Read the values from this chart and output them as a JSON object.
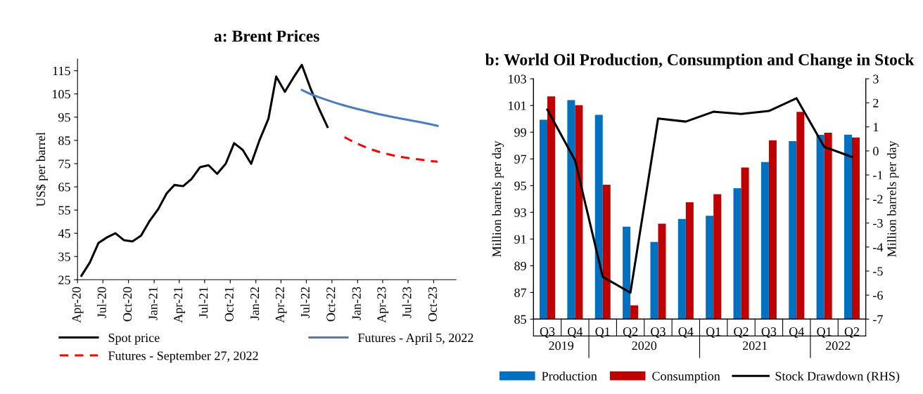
{
  "chart_data": [
    {
      "type": "line",
      "title": "a: Brent Prices",
      "ylabel": "US$ per barrel",
      "grid": false,
      "legend": "bottom",
      "marker": "none",
      "xlim": [
        "2020-04",
        "2023-12-20"
      ],
      "ylim": [
        25,
        120
      ],
      "yticks": [
        25,
        35,
        45,
        55,
        65,
        75,
        85,
        95,
        105,
        115
      ],
      "xticks": [
        {
          "value": "2020-04",
          "label": "Apr-20"
        },
        {
          "value": "2020-07",
          "label": "Jul-20"
        },
        {
          "value": "2020-10",
          "label": "Oct-20"
        },
        {
          "value": "2021-01",
          "label": "Jan-21"
        },
        {
          "value": "2021-04",
          "label": "Apr-21"
        },
        {
          "value": "2021-07",
          "label": "Jul-21"
        },
        {
          "value": "2021-10",
          "label": "Oct-21"
        },
        {
          "value": "2022-01",
          "label": "Jan-22"
        },
        {
          "value": "2022-04",
          "label": "Apr-22"
        },
        {
          "value": "2022-07",
          "label": "Jul-22"
        },
        {
          "value": "2022-10",
          "label": "Oct-22"
        },
        {
          "value": "2023-01",
          "label": "Jan-23"
        },
        {
          "value": "2023-04",
          "label": "Apr-23"
        },
        {
          "value": "2023-07",
          "label": "Jul-23"
        },
        {
          "value": "2023-10",
          "label": "Oct-23"
        }
      ],
      "series": [
        {
          "name": "Spot price",
          "color": "#000000",
          "line_style": "solid",
          "x": [
            "2020-04-15",
            "2020-05-15",
            "2020-06-15",
            "2020-07-15",
            "2020-08-15",
            "2020-09-15",
            "2020-10-15",
            "2020-11-15",
            "2020-12-15",
            "2021-01-15",
            "2021-02-15",
            "2021-03-15",
            "2021-04-15",
            "2021-05-15",
            "2021-06-15",
            "2021-07-15",
            "2021-08-15",
            "2021-09-15",
            "2021-10-15",
            "2021-11-15",
            "2021-12-15",
            "2022-01-15",
            "2022-02-15",
            "2022-03-15",
            "2022-04-15",
            "2022-05-15",
            "2022-06-15",
            "2022-07-15",
            "2022-08-15",
            "2022-09-15"
          ],
          "values": [
            26.7,
            32.4,
            40.8,
            43.2,
            45.0,
            42.0,
            41.5,
            44.0,
            50.2,
            55.3,
            62.2,
            65.8,
            65.3,
            68.4,
            73.5,
            74.3,
            70.6,
            75.0,
            83.8,
            80.9,
            74.9,
            85.4,
            94.3,
            112.5,
            105.9,
            111.9,
            117.5,
            107.7,
            98.8,
            90.8
          ]
        },
        {
          "name": "Futures - April 5, 2022",
          "color": "#4a7ebb",
          "line_style": "solid",
          "x": [
            "2022-06-15",
            "2022-07-15",
            "2022-08-15",
            "2022-09-15",
            "2022-10-15",
            "2022-11-15",
            "2022-12-15",
            "2023-01-15",
            "2023-02-15",
            "2023-03-15",
            "2023-04-15",
            "2023-05-15",
            "2023-06-15",
            "2023-07-15",
            "2023-08-15",
            "2023-09-15",
            "2023-10-15"
          ],
          "values": [
            106.7,
            105.0,
            103.6,
            102.3,
            101.1,
            100.0,
            99.0,
            98.1,
            97.2,
            96.4,
            95.6,
            94.9,
            94.2,
            93.5,
            92.8,
            92.1,
            91.3
          ]
        },
        {
          "name": "Futures - September 27, 2022",
          "color": "#ff0000",
          "line_style": "dashed",
          "x": [
            "2022-11-15",
            "2022-12-15",
            "2023-01-15",
            "2023-02-15",
            "2023-03-15",
            "2023-04-15",
            "2023-05-15",
            "2023-06-15",
            "2023-07-15",
            "2023-08-15",
            "2023-09-15",
            "2023-10-15"
          ],
          "values": [
            86.4,
            84.5,
            82.8,
            81.3,
            80.2,
            79.2,
            78.4,
            77.7,
            77.2,
            76.7,
            76.2,
            75.8
          ]
        }
      ]
    },
    {
      "type": "bar",
      "title": "b: World Oil Production, Consumption and Change in Stock",
      "ylabel": "Million barrels per day",
      "y2label": "Million barrels per day",
      "grid": false,
      "legend": "bottom",
      "categories": [
        "Q3",
        "Q4",
        "Q1",
        "Q2",
        "Q3",
        "Q4",
        "Q1",
        "Q2",
        "Q3",
        "Q4",
        "Q1",
        "Q2"
      ],
      "annotations": [
        "2019",
        "2020",
        "2021",
        "2022"
      ],
      "ylim": [
        85,
        103
      ],
      "yticks": [
        85,
        87,
        89,
        91,
        93,
        95,
        97,
        99,
        101,
        103
      ],
      "y2lim": [
        -7,
        3
      ],
      "y2ticks": [
        {
          "value": -7,
          "label": "-7"
        },
        {
          "value": -6,
          "label": "-6"
        },
        {
          "value": -5,
          "label": "-5"
        },
        {
          "value": -4,
          "label": "-4"
        },
        {
          "value": -3,
          "label": "-3"
        },
        {
          "value": -2,
          "label": "-2"
        },
        {
          "value": -1,
          "label": "-1"
        },
        0,
        1,
        2,
        3
      ],
      "series": [
        {
          "name": "Production",
          "color": "#0070c0",
          "values": [
            99.93,
            101.4,
            100.3,
            91.92,
            90.78,
            92.5,
            92.74,
            94.8,
            96.76,
            98.33,
            98.8,
            98.82
          ]
        },
        {
          "name": "Consumption",
          "color": "#c00000",
          "values": [
            101.68,
            101.02,
            95.07,
            86.03,
            92.15,
            93.75,
            94.36,
            96.36,
            98.4,
            100.52,
            98.96,
            98.6
          ]
        },
        {
          "name": "Stock Drawdown (RHS)",
          "type": "line",
          "axis": "y2",
          "color": "#000000",
          "values": [
            1.72,
            -0.39,
            -5.24,
            -5.9,
            1.35,
            1.22,
            1.63,
            1.54,
            1.66,
            2.19,
            0.17,
            -0.25
          ]
        }
      ]
    }
  ]
}
